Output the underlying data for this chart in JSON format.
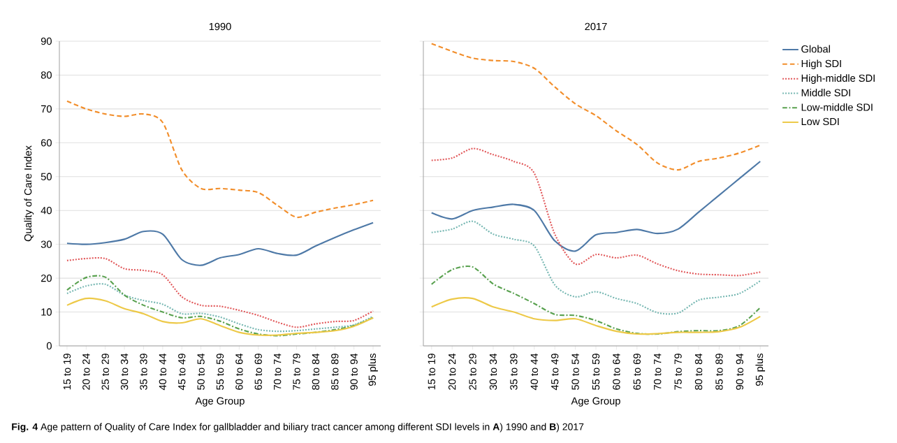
{
  "chart_data": [
    {
      "type": "line",
      "title": "1990",
      "xlabel": "Age Group",
      "ylabel": "Quality of Care Index",
      "categories": [
        "15 to 19",
        "20 to 24",
        "25 to 29",
        "30 to 34",
        "35 to 39",
        "40 to 44",
        "45 to 49",
        "50 to 54",
        "55 to 59",
        "60 to 64",
        "65 to 69",
        "70 to 74",
        "75 to 79",
        "80 to 84",
        "85 to 89",
        "90 to 94",
        "95 plus"
      ],
      "ylim": [
        0,
        90
      ],
      "yticks": [
        0,
        10,
        20,
        30,
        40,
        50,
        60,
        70,
        80,
        90
      ],
      "grid": "y",
      "legend": false,
      "annotations": [
        "**Fig. 4** Age pattern of Quality of Care Index for gallbladder and biliary tract cancer among different SDI levels in **A**) 1990 and **B**) 2017"
      ],
      "series": [
        {
          "color": "#4e79a7",
          "line_style": "solid",
          "values": [
            30.3,
            30,
            30.5,
            31.5,
            33.8,
            33,
            25.5,
            23.8,
            26,
            27,
            28.7,
            27.3,
            26.8,
            29.5,
            32,
            34.3,
            36.4
          ]
        },
        {
          "color": "#f28e2b",
          "line_style": "dashed",
          "values": [
            72.3,
            70,
            68.5,
            67.8,
            68.5,
            66,
            52,
            46.5,
            46.5,
            46,
            45.3,
            41.5,
            38,
            39.5,
            40.7,
            41.7,
            43
          ]
        },
        {
          "color": "#e15759",
          "line_style": "dotted",
          "values": [
            25.2,
            25.8,
            25.8,
            22.8,
            22.3,
            21,
            14.5,
            12,
            11.7,
            10.5,
            9,
            7,
            5.5,
            6.5,
            7.2,
            7.5,
            10.3
          ]
        },
        {
          "color": "#76b7b2",
          "line_style": "dotted",
          "values": [
            15.5,
            17.7,
            18.2,
            15,
            13.4,
            12.3,
            9.5,
            9.6,
            8.5,
            6.5,
            4.8,
            4.3,
            4.5,
            5,
            5.5,
            6.2,
            8.7
          ]
        },
        {
          "color": "#59a14f",
          "line_style": "dashdot",
          "values": [
            16.5,
            20.2,
            20.3,
            15,
            12,
            10,
            8.3,
            8.7,
            7.3,
            5,
            3.5,
            3.0,
            3.5,
            4,
            4.8,
            6,
            8.3
          ]
        },
        {
          "color": "#edc948",
          "line_style": "solid",
          "values": [
            12,
            14,
            13.3,
            11,
            9.5,
            7.2,
            6.8,
            8,
            6,
            4,
            3.2,
            3.2,
            3.7,
            4,
            4.5,
            5.8,
            8.3
          ]
        }
      ]
    },
    {
      "type": "line",
      "title": "2017",
      "xlabel": "Age Group",
      "categories": [
        "15 to 19",
        "20 to 24",
        "25 to 29",
        "30 to 34",
        "35 to 39",
        "40 to 44",
        "45 to 49",
        "50 to 54",
        "55 to 59",
        "60 to 64",
        "65 to 69",
        "70 to 74",
        "75 to 79",
        "80 to 84",
        "85 to 89",
        "90 to 94",
        "95 plus"
      ],
      "ylim": [
        0,
        90
      ],
      "yticks": [
        0,
        10,
        20,
        30,
        40,
        50,
        60,
        70,
        80,
        90
      ],
      "tick_labels": "x",
      "grid": "y",
      "legend": "right",
      "series": [
        {
          "name": "Global",
          "color": "#4e79a7",
          "line_style": "solid",
          "values": [
            39.3,
            37.5,
            40,
            41,
            41.8,
            40,
            31,
            28,
            32.8,
            33.5,
            34.4,
            33.2,
            34.5,
            39.5,
            44.5,
            49.5,
            54.5
          ]
        },
        {
          "name": "High SDI",
          "color": "#f28e2b",
          "line_style": "dashed",
          "values": [
            89.3,
            87,
            85,
            84.3,
            84,
            82,
            76.5,
            71.5,
            68,
            63.5,
            59.5,
            54,
            52,
            54.5,
            55.5,
            57,
            59.3
          ]
        },
        {
          "name": "High-middle SDI",
          "color": "#e15759",
          "line_style": "dotted",
          "values": [
            54.8,
            55.5,
            58.3,
            56.5,
            54.5,
            51,
            33,
            24.2,
            27,
            26,
            26.8,
            24.2,
            22.2,
            21.2,
            21,
            20.8,
            21.8
          ]
        },
        {
          "name": "Middle SDI",
          "color": "#76b7b2",
          "line_style": "dotted",
          "values": [
            33.5,
            34.5,
            36.8,
            33,
            31.5,
            29.5,
            18,
            14.5,
            16,
            14,
            12.5,
            9.8,
            9.7,
            13.5,
            14.4,
            15.5,
            19.2
          ]
        },
        {
          "name": "Low-middle SDI",
          "color": "#59a14f",
          "line_style": "dashdot",
          "values": [
            18.2,
            22.5,
            23.3,
            18.3,
            15.5,
            12.5,
            9.3,
            9,
            7.5,
            5,
            3.7,
            3.5,
            4.2,
            4.5,
            4.5,
            6,
            11.3
          ]
        },
        {
          "name": "Low SDI",
          "color": "#edc948",
          "line_style": "solid",
          "values": [
            11.5,
            13.8,
            14,
            11.5,
            10,
            8,
            7.5,
            8,
            6,
            4.3,
            3.5,
            3.6,
            4,
            4,
            4.2,
            5.5,
            8.7
          ]
        }
      ]
    }
  ]
}
